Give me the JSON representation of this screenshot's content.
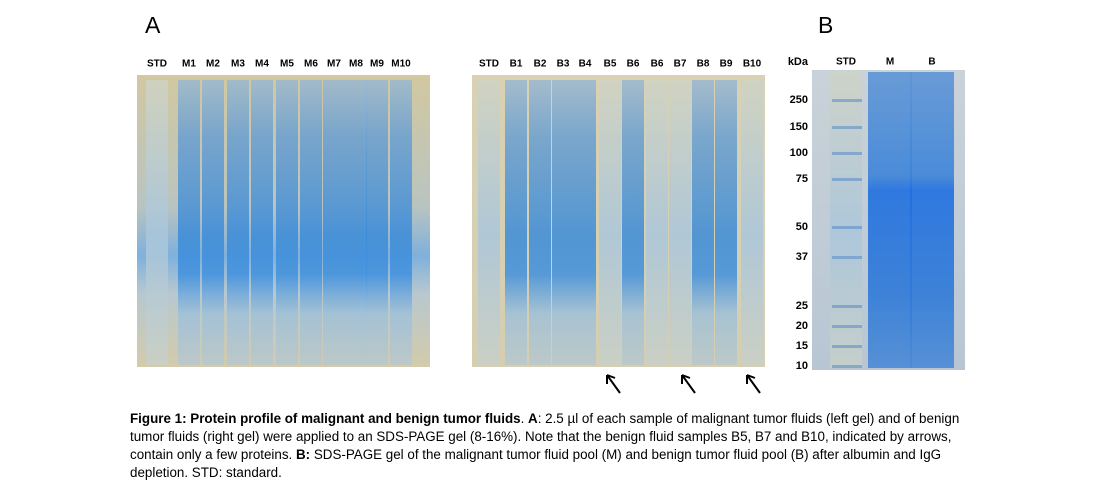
{
  "panel_a": {
    "label": "A",
    "left_gel": {
      "lanes": [
        "STD",
        "M1",
        "M2",
        "M3",
        "M4",
        "M5",
        "M6",
        "M7",
        "M8",
        "M9",
        "M10"
      ]
    },
    "right_gel": {
      "lanes": [
        "STD",
        "B1",
        "B2",
        "B3",
        "B4",
        "B5",
        "B6",
        "B6",
        "B7",
        "B8",
        "B9",
        "B10"
      ]
    }
  },
  "panel_b": {
    "label": "B",
    "axis_label": "kDa",
    "markers": [
      "250",
      "150",
      "100",
      "75",
      "50",
      "37",
      "25",
      "20",
      "15",
      "10"
    ],
    "lanes": [
      "STD",
      "M",
      "B"
    ]
  },
  "caption": {
    "segments": [
      {
        "text": "Figure 1: Protein profile of malignant and benign tumor fluids",
        "bold": true
      },
      {
        "text": ". ",
        "bold": false
      },
      {
        "text": "A",
        "bold": true
      },
      {
        "text": ": 2.5 µl of each sample of malignant tumor fluids (left gel) and of benign tumor fluids (right gel) were applied to an SDS-PAGE gel (8-16%). Note that the benign fluid samples B5, B7 and B10, indicated by arrows, contain only a few proteins. ",
        "bold": false
      },
      {
        "text": "B:",
        "bold": true
      },
      {
        "text": " SDS-PAGE gel of the malignant tumor fluid pool (M) and benign tumor fluid pool (B) after albumin and IgG depletion. STD: standard.",
        "bold": false
      }
    ]
  }
}
